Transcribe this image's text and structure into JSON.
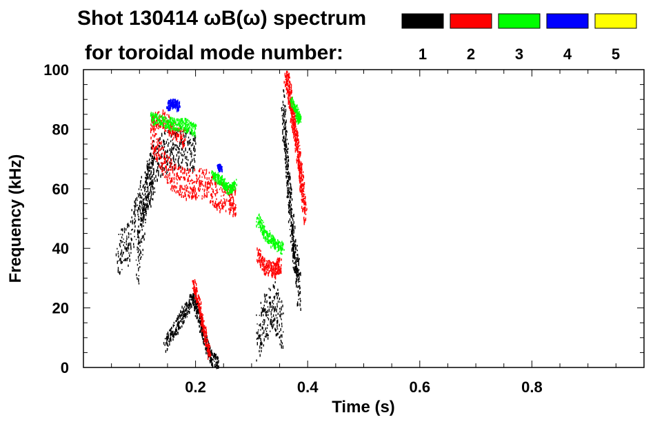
{
  "chart_data": {
    "type": "heatmap",
    "title_line1": "Shot 130414 ωB(ω) spectrum",
    "title_line2": "for toroidal mode number:",
    "xlabel": "Time (s)",
    "ylabel": "Frequency (kHz)",
    "xlim": [
      0,
      1.0
    ],
    "ylim": [
      0,
      100
    ],
    "x_ticks": [
      0.2,
      0.4,
      0.6,
      0.8
    ],
    "x_tick_labels": [
      "0.2",
      "0.4",
      "0.6",
      "0.8"
    ],
    "y_ticks": [
      0,
      20,
      40,
      60,
      80,
      100
    ],
    "y_tick_labels": [
      "0",
      "20",
      "40",
      "60",
      "80",
      "100"
    ],
    "grid": false,
    "legend_position": "top-right",
    "legend": [
      {
        "label": "1",
        "color": "#000000"
      },
      {
        "label": "2",
        "color": "#ff0000"
      },
      {
        "label": "3",
        "color": "#00ff00"
      },
      {
        "label": "4",
        "color": "#0000ff"
      },
      {
        "label": "5",
        "color": "#ffff00"
      }
    ],
    "series": [
      {
        "name": "1",
        "color": "#000000",
        "features": [
          {
            "points": [
              [
                0.06,
                38
              ],
              [
                0.08,
                42
              ],
              [
                0.1,
                55
              ],
              [
                0.12,
                64
              ],
              [
                0.14,
                72
              ],
              [
                0.16,
                74
              ],
              [
                0.18,
                74
              ],
              [
                0.2,
                73
              ]
            ],
            "spread": 7
          },
          {
            "points": [
              [
                0.095,
                35
              ],
              [
                0.105,
                50
              ],
              [
                0.115,
                62
              ],
              [
                0.125,
                68
              ]
            ],
            "spread": 9
          },
          {
            "points": [
              [
                0.145,
                8
              ],
              [
                0.165,
                14
              ],
              [
                0.18,
                19
              ],
              [
                0.195,
                24
              ],
              [
                0.205,
                18
              ],
              [
                0.215,
                10
              ],
              [
                0.225,
                4
              ],
              [
                0.24,
                1
              ]
            ],
            "spread": 2.5
          },
          {
            "points": [
              [
                0.31,
                10
              ],
              [
                0.325,
                18
              ],
              [
                0.34,
                22
              ],
              [
                0.355,
                12
              ]
            ],
            "spread": 8
          },
          {
            "points": [
              [
                0.355,
                88
              ],
              [
                0.36,
                75
              ],
              [
                0.365,
                62
              ],
              [
                0.37,
                50
              ],
              [
                0.375,
                40
              ],
              [
                0.38,
                34
              ],
              [
                0.385,
                25
              ]
            ],
            "spread": 6
          }
        ]
      },
      {
        "name": "2",
        "color": "#ff0000",
        "features": [
          {
            "points": [
              [
                0.12,
                79
              ],
              [
                0.14,
                70
              ],
              [
                0.16,
                64
              ],
              [
                0.18,
                62
              ],
              [
                0.2,
                62
              ],
              [
                0.22,
                62
              ],
              [
                0.24,
                58
              ],
              [
                0.26,
                57
              ],
              [
                0.27,
                56
              ]
            ],
            "spread": 5
          },
          {
            "points": [
              [
                0.12,
                82
              ],
              [
                0.14,
                84
              ],
              [
                0.16,
                80
              ],
              [
                0.18,
                77
              ]
            ],
            "spread": 3
          },
          {
            "points": [
              [
                0.195,
                29
              ],
              [
                0.205,
                22
              ],
              [
                0.215,
                12
              ],
              [
                0.225,
                4
              ]
            ],
            "spread": 1.5
          },
          {
            "points": [
              [
                0.31,
                38
              ],
              [
                0.325,
                34
              ],
              [
                0.34,
                33
              ],
              [
                0.35,
                35
              ]
            ],
            "spread": 2.5
          },
          {
            "points": [
              [
                0.36,
                100
              ],
              [
                0.365,
                95
              ],
              [
                0.37,
                88
              ],
              [
                0.375,
                82
              ],
              [
                0.38,
                76
              ],
              [
                0.385,
                68
              ],
              [
                0.39,
                60
              ],
              [
                0.395,
                52
              ]
            ],
            "spread": 4
          }
        ]
      },
      {
        "name": "3",
        "color": "#00ff00",
        "features": [
          {
            "points": [
              [
                0.12,
                84
              ],
              [
                0.14,
                83
              ],
              [
                0.16,
                82
              ],
              [
                0.18,
                82
              ],
              [
                0.2,
                80
              ]
            ],
            "spread": 2
          },
          {
            "points": [
              [
                0.23,
                65
              ],
              [
                0.245,
                63
              ],
              [
                0.26,
                60
              ],
              [
                0.27,
                62
              ]
            ],
            "spread": 1.5
          },
          {
            "points": [
              [
                0.31,
                50
              ],
              [
                0.325,
                45
              ],
              [
                0.34,
                42
              ],
              [
                0.355,
                40
              ]
            ],
            "spread": 2
          },
          {
            "points": [
              [
                0.37,
                90
              ],
              [
                0.38,
                86
              ],
              [
                0.385,
                83
              ]
            ],
            "spread": 1.5
          }
        ]
      },
      {
        "name": "4",
        "color": "#0000ff",
        "features": [
          {
            "points": [
              [
                0.15,
                88
              ],
              [
                0.16,
                89
              ],
              [
                0.17,
                88
              ]
            ],
            "spread": 1.5
          },
          {
            "points": [
              [
                0.24,
                68
              ],
              [
                0.245,
                67
              ]
            ],
            "spread": 0.8
          }
        ]
      },
      {
        "name": "5",
        "color": "#ffff00",
        "features": []
      }
    ]
  }
}
